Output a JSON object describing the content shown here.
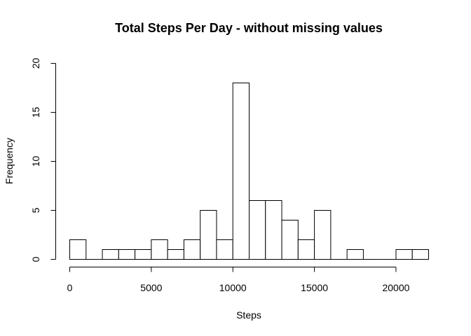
{
  "chart_data": {
    "type": "bar",
    "title": "Total Steps Per Day - without missing values",
    "xlabel": "Steps",
    "ylabel": "Frequency",
    "bin_width": 1000,
    "bins": [
      {
        "start": 0,
        "end": 1000,
        "count": 2
      },
      {
        "start": 1000,
        "end": 2000,
        "count": 0
      },
      {
        "start": 2000,
        "end": 3000,
        "count": 1
      },
      {
        "start": 3000,
        "end": 4000,
        "count": 1
      },
      {
        "start": 4000,
        "end": 5000,
        "count": 1
      },
      {
        "start": 5000,
        "end": 6000,
        "count": 2
      },
      {
        "start": 6000,
        "end": 7000,
        "count": 1
      },
      {
        "start": 7000,
        "end": 8000,
        "count": 2
      },
      {
        "start": 8000,
        "end": 9000,
        "count": 5
      },
      {
        "start": 9000,
        "end": 10000,
        "count": 2
      },
      {
        "start": 10000,
        "end": 11000,
        "count": 18
      },
      {
        "start": 11000,
        "end": 12000,
        "count": 6
      },
      {
        "start": 12000,
        "end": 13000,
        "count": 6
      },
      {
        "start": 13000,
        "end": 14000,
        "count": 4
      },
      {
        "start": 14000,
        "end": 15000,
        "count": 2
      },
      {
        "start": 15000,
        "end": 16000,
        "count": 5
      },
      {
        "start": 16000,
        "end": 17000,
        "count": 0
      },
      {
        "start": 17000,
        "end": 18000,
        "count": 1
      },
      {
        "start": 18000,
        "end": 19000,
        "count": 0
      },
      {
        "start": 19000,
        "end": 20000,
        "count": 0
      },
      {
        "start": 20000,
        "end": 21000,
        "count": 1
      },
      {
        "start": 21000,
        "end": 22000,
        "count": 1
      }
    ],
    "xlim": [
      0,
      22000
    ],
    "ylim": [
      0,
      20
    ],
    "x_ticks": [
      0,
      5000,
      10000,
      15000,
      20000
    ],
    "y_ticks": [
      0,
      5,
      10,
      15,
      20
    ],
    "grid": false,
    "bar_fill": "#ffffff",
    "bar_stroke": "#000000"
  }
}
